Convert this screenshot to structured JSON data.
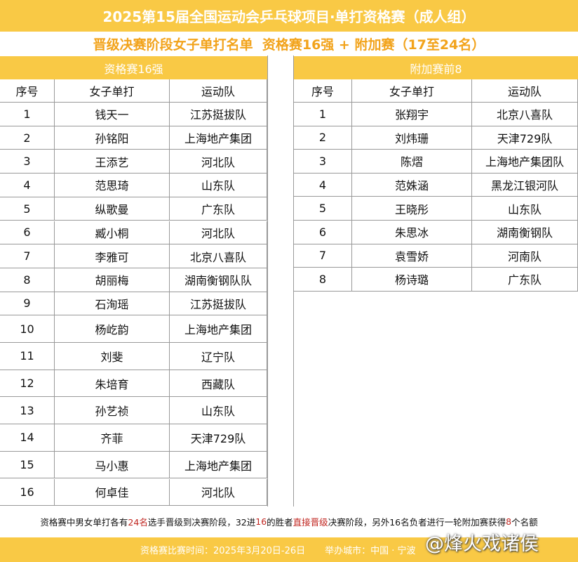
{
  "header": {
    "title": "2025第15届全国运动会乒乓球项目·单打资格赛（成人组）",
    "subtitle": "晋级决赛阶段女子单打名单  资格赛16强 + 附加赛（17至24名）"
  },
  "tables": [
    {
      "title": "资格赛16强",
      "columns": [
        "序号",
        "女子单打",
        "运动队"
      ],
      "rows": [
        [
          1,
          "钱天一",
          "江苏挺拔队"
        ],
        [
          2,
          "孙铭阳",
          "上海地产集团"
        ],
        [
          3,
          "王添艺",
          "河北队"
        ],
        [
          4,
          "范思琦",
          "山东队"
        ],
        [
          5,
          "纵歌曼",
          "广东队"
        ],
        [
          6,
          "臧小桐",
          "河北队"
        ],
        [
          7,
          "李雅可",
          "北京八喜队"
        ],
        [
          8,
          "胡丽梅",
          "湖南衡钢队队"
        ],
        [
          9,
          "石洵瑶",
          "江苏挺拔队"
        ],
        [
          10,
          "杨屹韵",
          "上海地产集团"
        ],
        [
          11,
          "刘斐",
          "辽宁队"
        ],
        [
          12,
          "朱培育",
          "西藏队"
        ],
        [
          13,
          "孙艺祯",
          "山东队"
        ],
        [
          14,
          "齐菲",
          "天津729队"
        ],
        [
          15,
          "马小惠",
          "上海地产集团"
        ],
        [
          16,
          "何卓佳",
          "河北队"
        ]
      ]
    },
    {
      "title": "附加赛前8",
      "columns": [
        "序号",
        "女子单打",
        "运动队"
      ],
      "rows": [
        [
          1,
          "张翔宇",
          "北京八喜队"
        ],
        [
          2,
          "刘炜珊",
          "天津729队"
        ],
        [
          3,
          "陈熠",
          "上海地产集团队"
        ],
        [
          4,
          "范姝涵",
          "黑龙江银河队"
        ],
        [
          5,
          "王晓彤",
          "山东队"
        ],
        [
          6,
          "朱思冰",
          "湖南衡钢队"
        ],
        [
          7,
          "袁雪娇",
          "河南队"
        ],
        [
          8,
          "杨诗璐",
          "广东队"
        ]
      ]
    }
  ],
  "note": [
    {
      "text": "资格赛中男女单打各有",
      "emphasis": false
    },
    {
      "text": "24名",
      "emphasis": true
    },
    {
      "text": "选手晋级到决赛阶段，32进",
      "emphasis": false
    },
    {
      "text": "16",
      "emphasis": true
    },
    {
      "text": "的胜者",
      "emphasis": false
    },
    {
      "text": "直接晋级",
      "emphasis": true
    },
    {
      "text": "决赛阶段，另外16名负者进行一轮附加赛获得",
      "emphasis": false
    },
    {
      "text": "8",
      "emphasis": true
    },
    {
      "text": "个名额",
      "emphasis": false
    }
  ],
  "footer": {
    "dates": "资格赛比赛时间：2025年3月20日-26日",
    "city": "举办城市：中国 · 宁波",
    "watermark": "@烽火戏诸侯"
  }
}
